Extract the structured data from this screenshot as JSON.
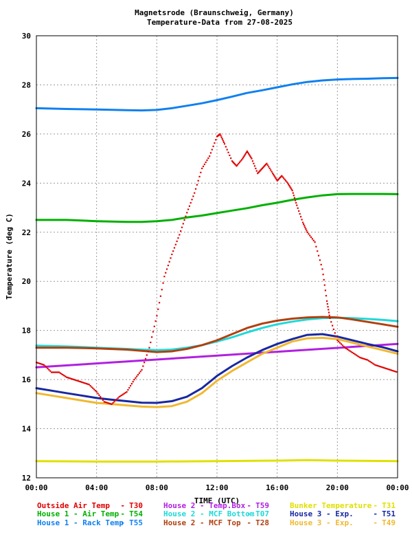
{
  "chart_data": {
    "type": "line",
    "title": "Magnetsrode (Braunschweig, Germany)",
    "subtitle": "Temperature-Data from 27-08-2025",
    "xlabel": "TIME (UTC)",
    "ylabel": "Temperature (deg C)",
    "xlim": [
      0,
      24
    ],
    "ylim": [
      12,
      30
    ],
    "x_ticks": [
      {
        "value": 0,
        "label": "00:00"
      },
      {
        "value": 4,
        "label": "04:00"
      },
      {
        "value": 8,
        "label": "08:00"
      },
      {
        "value": 12,
        "label": "12:00"
      },
      {
        "value": 16,
        "label": "16:00"
      },
      {
        "value": 20,
        "label": "20:00"
      },
      {
        "value": 24,
        "label": "00:00"
      }
    ],
    "y_ticks": [
      12,
      14,
      16,
      18,
      20,
      22,
      24,
      26,
      28,
      30
    ],
    "grid": true,
    "legend_position": "bottom",
    "series": [
      {
        "name": "Outside Air Temp",
        "code": "T30",
        "color": "#e00000",
        "style": "dots",
        "x": [
          0,
          0.5,
          1,
          1.5,
          2,
          2.5,
          3,
          3.5,
          4,
          4.5,
          5,
          5.5,
          6,
          6.5,
          7,
          7.5,
          8,
          8.5,
          9,
          9.5,
          10,
          10.5,
          11,
          11.5,
          12,
          12.2,
          12.5,
          13,
          13.3,
          13.7,
          14,
          14.3,
          14.7,
          15,
          15.3,
          15.7,
          16,
          16.3,
          16.7,
          17,
          17.3,
          17.7,
          18,
          18.5,
          19,
          19.3,
          19.5,
          20,
          20.5,
          21,
          21.5,
          22,
          22.5,
          23,
          23.5,
          24
        ],
        "values": [
          16.7,
          16.6,
          16.3,
          16.3,
          16.1,
          16.0,
          15.9,
          15.8,
          15.5,
          15.1,
          15.0,
          15.3,
          15.5,
          16.0,
          16.4,
          17.3,
          18.6,
          20.2,
          21.1,
          21.9,
          22.8,
          23.6,
          24.6,
          25.1,
          25.9,
          26.0,
          25.6,
          24.9,
          24.7,
          25.0,
          25.3,
          25.0,
          24.4,
          24.6,
          24.8,
          24.4,
          24.1,
          24.3,
          24.0,
          23.7,
          23.1,
          22.4,
          22.0,
          21.6,
          20.5,
          19.2,
          18.5,
          17.6,
          17.3,
          17.1,
          16.9,
          16.8,
          16.6,
          16.5,
          16.4,
          16.3
        ]
      },
      {
        "name": "House 1 - Air  Temp",
        "code": "T54",
        "color": "#00b000",
        "style": "line",
        "x": [
          0,
          2,
          4,
          6,
          7,
          8,
          9,
          10,
          11,
          12,
          13,
          14,
          15,
          16,
          17,
          18,
          19,
          20,
          21,
          22,
          23,
          24
        ],
        "values": [
          22.5,
          22.5,
          22.45,
          22.42,
          22.42,
          22.45,
          22.5,
          22.6,
          22.68,
          22.78,
          22.88,
          22.98,
          23.1,
          23.2,
          23.32,
          23.42,
          23.5,
          23.55,
          23.56,
          23.56,
          23.56,
          23.55
        ]
      },
      {
        "name": "House 1 - Rack Temp",
        "code": "T55",
        "color": "#1080f0",
        "style": "line",
        "x": [
          0,
          2,
          4,
          6,
          7,
          8,
          9,
          10,
          11,
          12,
          13,
          14,
          15,
          16,
          17,
          18,
          19,
          20,
          21,
          22,
          23,
          24
        ],
        "values": [
          27.05,
          27.02,
          27.0,
          26.97,
          26.96,
          26.98,
          27.05,
          27.15,
          27.25,
          27.38,
          27.52,
          27.67,
          27.78,
          27.9,
          28.02,
          28.12,
          28.18,
          28.22,
          28.24,
          28.25,
          28.27,
          28.28
        ]
      },
      {
        "name": "House 2 - Temp.Box",
        "code": "T59",
        "color": "#b020e0",
        "style": "line",
        "x": [
          0,
          24
        ],
        "values": [
          16.5,
          17.45
        ]
      },
      {
        "name": "House 2 - MCF Bottom",
        "code": "T07",
        "color": "#20d8d8",
        "style": "line",
        "x": [
          0,
          2,
          4,
          6,
          7,
          8,
          9,
          10,
          11,
          12,
          13,
          14,
          15,
          16,
          17,
          18,
          19,
          20,
          21,
          22,
          23,
          24
        ],
        "values": [
          17.38,
          17.35,
          17.3,
          17.25,
          17.22,
          17.2,
          17.22,
          17.3,
          17.4,
          17.55,
          17.72,
          17.92,
          18.1,
          18.25,
          18.36,
          18.45,
          18.5,
          18.52,
          18.5,
          18.47,
          18.43,
          18.38
        ]
      },
      {
        "name": "House 2 - MCF Top",
        "code": "T28",
        "color": "#b04010",
        "style": "line",
        "x": [
          0,
          2,
          4,
          6,
          7,
          8,
          9,
          10,
          11,
          12,
          13,
          14,
          15,
          16,
          17,
          18,
          19,
          20,
          21,
          22,
          23,
          24
        ],
        "values": [
          17.3,
          17.3,
          17.27,
          17.22,
          17.17,
          17.12,
          17.15,
          17.25,
          17.4,
          17.6,
          17.85,
          18.1,
          18.28,
          18.4,
          18.48,
          18.53,
          18.55,
          18.53,
          18.45,
          18.35,
          18.25,
          18.15
        ]
      },
      {
        "name": "Bunker Temperature",
        "code": "T31",
        "color": "#e0e000",
        "style": "line",
        "x": [
          0,
          4,
          8,
          12,
          16,
          18,
          20,
          24
        ],
        "values": [
          12.68,
          12.66,
          12.66,
          12.68,
          12.7,
          12.72,
          12.7,
          12.68
        ]
      },
      {
        "name": "House 3 - Exp.",
        "code": "T51",
        "color": "#1828a0",
        "style": "line",
        "x": [
          0,
          1,
          2,
          3,
          4,
          5,
          6,
          7,
          8,
          9,
          10,
          11,
          12,
          13,
          14,
          15,
          16,
          17,
          18,
          19,
          20,
          21,
          22,
          23,
          24
        ],
        "values": [
          15.65,
          15.55,
          15.45,
          15.35,
          15.25,
          15.18,
          15.12,
          15.06,
          15.05,
          15.12,
          15.3,
          15.65,
          16.15,
          16.55,
          16.9,
          17.2,
          17.45,
          17.65,
          17.82,
          17.85,
          17.75,
          17.6,
          17.45,
          17.32,
          17.15
        ]
      },
      {
        "name": "House 3 - Exp.",
        "code": "T49",
        "color": "#f0b830",
        "style": "line",
        "x": [
          0,
          1,
          2,
          3,
          4,
          5,
          6,
          7,
          8,
          9,
          10,
          11,
          12,
          13,
          14,
          15,
          16,
          17,
          18,
          19,
          20,
          21,
          22,
          23,
          24
        ],
        "values": [
          15.45,
          15.35,
          15.25,
          15.15,
          15.05,
          15.0,
          14.95,
          14.9,
          14.88,
          14.92,
          15.1,
          15.45,
          15.95,
          16.35,
          16.7,
          17.05,
          17.3,
          17.55,
          17.68,
          17.7,
          17.65,
          17.5,
          17.35,
          17.2,
          17.05
        ]
      }
    ]
  }
}
